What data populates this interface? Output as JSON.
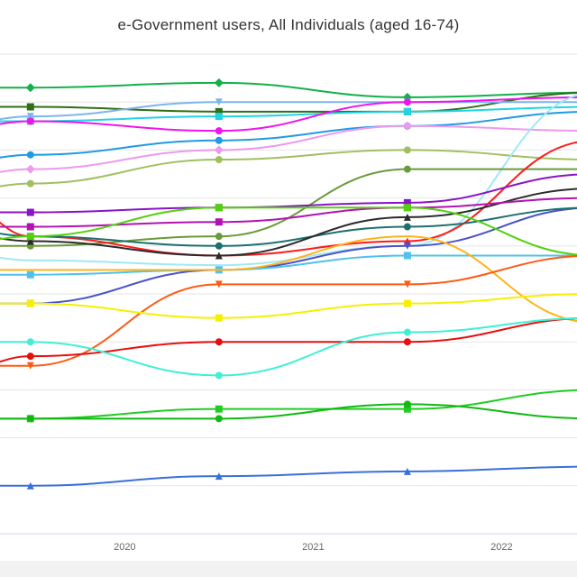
{
  "chart_data": {
    "type": "line",
    "title": "e-Government users, All Individuals (aged 16-74)",
    "xlabel": "",
    "ylabel": "",
    "x_tick_labels": [
      "2020",
      "2021",
      "2022"
    ],
    "x_domain": [
      2019.3,
      2022.4
    ],
    "ylim": [
      0,
      100
    ],
    "grid": true,
    "legend": "none",
    "x": [
      2019.2,
      2019.5,
      2020.5,
      2021.5,
      2022.5
    ],
    "series": [
      {
        "color": "#13b04b",
        "marker": "diamond",
        "values": [
          93,
          93,
          94,
          91,
          92
        ]
      },
      {
        "color": "#2f6f16",
        "marker": "square",
        "values": [
          89,
          89,
          88,
          88,
          92
        ]
      },
      {
        "color": "#7cb5ec",
        "marker": "triangle-down",
        "values": [
          86,
          87,
          90,
          90,
          90
        ]
      },
      {
        "color": "#22d3e6",
        "marker": "square",
        "values": [
          86,
          86,
          87,
          88,
          89
        ]
      },
      {
        "color": "#ee14ee",
        "marker": "circle",
        "values": [
          85,
          86,
          84,
          90,
          91
        ]
      },
      {
        "color": "#1f9ae5",
        "marker": "circle",
        "values": [
          78,
          79,
          82,
          85,
          88
        ]
      },
      {
        "color": "#ee99ee",
        "marker": "diamond",
        "values": [
          75,
          76,
          80,
          85,
          84
        ]
      },
      {
        "color": "#a0c060",
        "marker": "circle",
        "values": [
          72,
          73,
          78,
          80,
          78
        ]
      },
      {
        "color": "#9fe8f5",
        "marker": "none",
        "values": [
          58,
          57,
          56,
          60,
          92
        ]
      },
      {
        "color": "#6a9a3a",
        "marker": "circle",
        "values": [
          60,
          60,
          62,
          76,
          76
        ]
      },
      {
        "color": "#ff1a1a",
        "marker": "triangle-up",
        "values": [
          67,
          62,
          58,
          61,
          82
        ]
      },
      {
        "color": "#8a12c8",
        "marker": "square",
        "values": [
          67,
          67,
          68,
          69,
          75
        ]
      },
      {
        "color": "#4a52c8",
        "marker": "triangle-down",
        "values": [
          48,
          48,
          55,
          60,
          68
        ]
      },
      {
        "color": "#1d6f6f",
        "marker": "circle",
        "values": [
          63,
          62,
          60,
          64,
          68
        ]
      },
      {
        "color": "#2a2a2a",
        "marker": "triangle-up",
        "values": [
          62,
          61,
          58,
          66,
          72
        ]
      },
      {
        "color": "#b312b3",
        "marker": "square",
        "values": [
          64,
          64,
          65,
          68,
          70
        ]
      },
      {
        "color": "#4fc1ea",
        "marker": "square",
        "values": [
          54,
          54,
          55,
          58,
          58
        ]
      },
      {
        "color": "#52d10e",
        "marker": "square",
        "values": [
          61,
          62,
          68,
          68,
          58
        ]
      },
      {
        "color": "#ffb31a",
        "marker": "none",
        "values": [
          55,
          55,
          55,
          62,
          44
        ]
      },
      {
        "color": "#ff5a14",
        "marker": "triangle-down",
        "values": [
          35,
          35,
          52,
          52,
          58
        ]
      },
      {
        "color": "#f5f000",
        "marker": "square",
        "values": [
          48,
          48,
          45,
          48,
          50
        ]
      },
      {
        "color": "#e80e0e",
        "marker": "circle",
        "values": [
          35,
          37,
          40,
          40,
          45
        ]
      },
      {
        "color": "#3ff0d4",
        "marker": "circle",
        "values": [
          40,
          40,
          33,
          42,
          45
        ]
      },
      {
        "color": "#22cc22",
        "marker": "square",
        "values": [
          24,
          24,
          26,
          26,
          30
        ]
      },
      {
        "color": "#12b812",
        "marker": "circle",
        "values": [
          24,
          24,
          24,
          27,
          24
        ]
      },
      {
        "color": "#3a6fdc",
        "marker": "triangle-up",
        "values": [
          10,
          10,
          12,
          13,
          14
        ]
      }
    ]
  }
}
